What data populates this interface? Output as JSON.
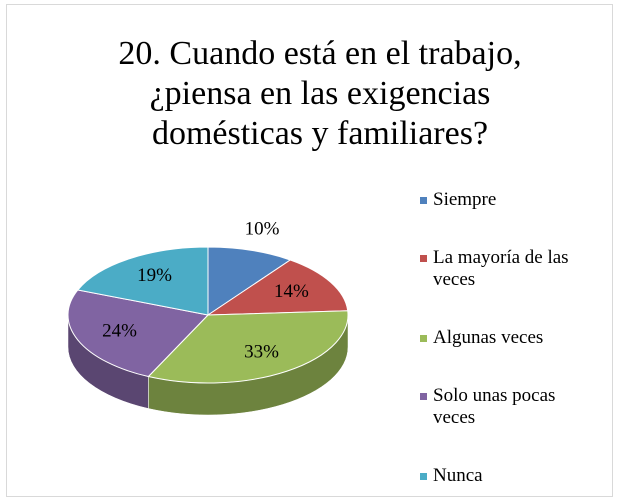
{
  "chart_data": {
    "type": "pie",
    "title": "20. Cuando está en el trabajo, ¿piensa en las exigencias domésticas y familiares?",
    "categories": [
      "Siempre",
      "La mayoría de las veces",
      "Algunas veces",
      "Solo unas pocas veces",
      "Nunca"
    ],
    "values": [
      10,
      14,
      33,
      24,
      19
    ],
    "value_labels": [
      "10%",
      "14%",
      "33%",
      "24%",
      "19%"
    ],
    "colors": [
      "#4f81bd",
      "#c0504d",
      "#9bbb59",
      "#8064a2",
      "#4bacc6"
    ],
    "legend": "right"
  }
}
